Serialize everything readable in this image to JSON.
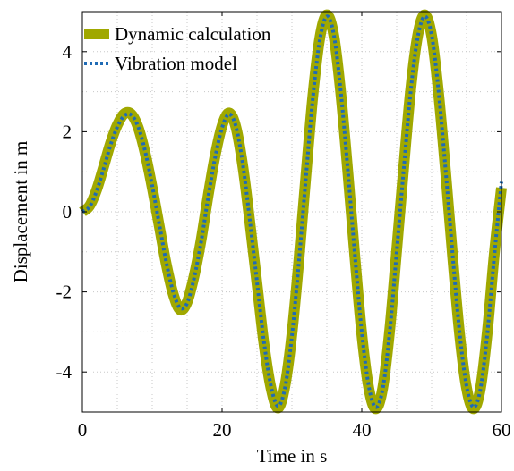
{
  "chart_data": {
    "type": "line",
    "xlabel": "Time in s",
    "ylabel": "Displacement in m",
    "xlim": [
      0,
      60
    ],
    "ylim": [
      -5,
      5
    ],
    "xticks": [
      0,
      20,
      40,
      60
    ],
    "yticks": [
      -4,
      -2,
      0,
      2,
      4
    ],
    "ytick_labels": [
      "-4",
      "-2",
      "0",
      "2",
      "4"
    ],
    "grid": "dotted-major-and-minor",
    "legend_position": "top-left",
    "series": [
      {
        "name": "Dynamic calculation",
        "color": "#a0a800",
        "style": "solid-thick",
        "x": [
          0,
          1,
          2,
          3,
          4,
          5,
          6,
          7,
          8,
          9,
          10,
          11,
          12,
          13,
          14,
          15,
          16,
          17,
          18,
          19,
          20,
          21,
          22,
          23,
          24,
          25,
          26,
          27,
          28,
          29,
          30,
          31,
          32,
          33,
          34,
          35,
          36,
          37,
          38,
          39,
          40,
          41,
          42,
          43,
          44,
          45,
          46,
          47,
          48,
          49,
          50,
          51,
          52,
          53,
          54,
          55,
          56,
          57,
          58,
          59,
          60
        ],
        "y": [
          0.0,
          0.14,
          0.53,
          1.1,
          1.7,
          2.17,
          2.45,
          2.44,
          2.1,
          1.45,
          0.6,
          -0.35,
          -1.3,
          -2.05,
          -2.45,
          -2.25,
          -1.6,
          -0.7,
          0.4,
          1.4,
          2.15,
          2.47,
          2.1,
          1.1,
          -0.3,
          -1.8,
          -3.3,
          -4.4,
          -4.9,
          -4.35,
          -3.05,
          -1.2,
          0.9,
          2.9,
          4.35,
          4.92,
          4.4,
          2.95,
          1.0,
          -1.1,
          -3.05,
          -4.4,
          -4.92,
          -4.4,
          -2.95,
          -0.95,
          1.1,
          3.05,
          4.4,
          4.92,
          4.4,
          2.95,
          1.0,
          -1.1,
          -3.05,
          -4.4,
          -4.92,
          -4.4,
          -2.95,
          -1.0,
          0.6
        ]
      },
      {
        "name": "Vibration model",
        "color": "#1f6bb5",
        "style": "dotted",
        "x": [
          0,
          1,
          2,
          3,
          4,
          5,
          6,
          7,
          8,
          9,
          10,
          11,
          12,
          13,
          14,
          15,
          16,
          17,
          18,
          19,
          20,
          21,
          22,
          23,
          24,
          25,
          26,
          27,
          28,
          29,
          30,
          31,
          32,
          33,
          34,
          35,
          36,
          37,
          38,
          39,
          40,
          41,
          42,
          43,
          44,
          45,
          46,
          47,
          48,
          49,
          50,
          51,
          52,
          53,
          54,
          55,
          56,
          57,
          58,
          59,
          60
        ],
        "y": [
          0.0,
          0.12,
          0.5,
          1.05,
          1.65,
          2.12,
          2.4,
          2.42,
          2.12,
          1.5,
          0.65,
          -0.3,
          -1.25,
          -2.0,
          -2.4,
          -2.28,
          -1.65,
          -0.75,
          0.35,
          1.35,
          2.1,
          2.44,
          2.12,
          1.15,
          -0.25,
          -1.75,
          -3.25,
          -4.35,
          -4.85,
          -4.4,
          -3.1,
          -1.25,
          0.85,
          2.85,
          4.3,
          4.88,
          4.42,
          3.0,
          1.05,
          -1.05,
          -3.0,
          -4.35,
          -4.88,
          -4.42,
          -3.0,
          -1.0,
          1.05,
          3.0,
          4.35,
          4.88,
          4.42,
          3.0,
          1.05,
          -1.05,
          -3.0,
          -4.35,
          -4.88,
          -4.42,
          -3.0,
          -1.05,
          0.75
        ]
      }
    ]
  }
}
